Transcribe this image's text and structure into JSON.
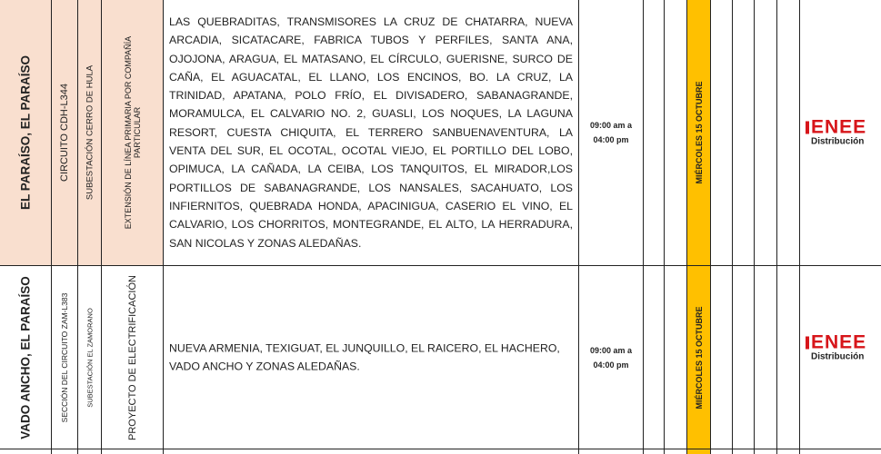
{
  "rows": [
    {
      "location": "EL PARAÍSO, EL PARAÍSO",
      "circuit": "CIRCUITO CDH-L344",
      "substation": "SUBESTACIÓN CERRO DE HULA",
      "project": "EXTENSIÓN DE LÍNEA PRIMARIA POR COMPAÑÍA PARTICULAR",
      "areas": "LAS QUEBRADITAS, TRANSMISORES LA CRUZ DE CHATARRA, NUEVA ARCADIA, SICATACARE, FABRICA TUBOS Y PERFILES, SANTA ANA, OJOJONA, ARAGUA, EL MATASANO, EL CÍRCULO, GUERISNE, SURCO DE CAÑA, EL AGUACATAL, EL LLANO, LOS ENCINOS, BO. LA CRUZ, LA TRINIDAD, APATANA, POLO FRÍO, EL DIVISADERO, SABANAGRANDE, MORAMULCA, EL CALVARIO NO. 2, GUASLI, LOS NOQUES, LA LAGUNA RESORT, CUESTA CHIQUITA, EL TERRERO SANBUENAVENTURA, LA VENTA DEL SUR, EL OCOTAL, OCOTAL VIEJO, EL PORTILLO DEL LOBO, OPIMUCA, LA CAÑADA, LA CEIBA, LOS TANQUITOS, EL MIRADOR,LOS PORTILLOS DE SABANAGRANDE, LOS NANSALES, SACAHUATO, LOS INFIERNITOS, QUEBRADA HONDA, APACINIGUA, CASERIO EL VINO, EL CALVARIO, LOS CHORRITOS, MONTEGRANDE, EL ALTO, LA HERRADURA, SAN NICOLAS Y ZONAS ALEDAÑAS.",
      "time": "09:00 am a 04:00 pm",
      "date": "MIÉRCOLES 15 OCTUBRE"
    },
    {
      "location": "VADO ANCHO, EL PARAÍSO",
      "circuit": "SECCIÓN DEL CIRCUITO ZAM-L383",
      "substation": "SUBESTACIÓN EL ZAMORANO",
      "project": "PROYECTO DE ELECTRIFICACIÓN",
      "areas": "NUEVA ARMENIA, TEXIGUAT, EL JUNQUILLO, EL RAICERO, EL HACHERO, VADO ANCHO Y ZONAS ALEDAÑAS.",
      "time": "09:00 am a 04:00 pm",
      "date": "MIÉRCOLES 15 OCTUBRE"
    }
  ],
  "logo": {
    "brand": "ENEE",
    "subtitle": "Distribución"
  }
}
